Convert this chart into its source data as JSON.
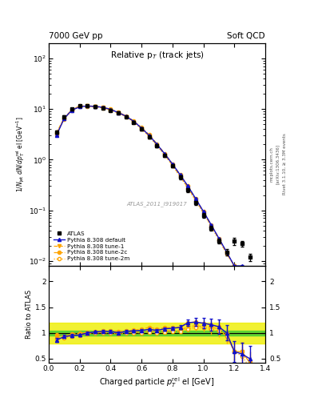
{
  "title_left": "7000 GeV pp",
  "title_right": "Soft QCD",
  "plot_title": "Relative p$_T$ (track jets)",
  "xlabel": "Charged particle $p_T^{\\rm rel}$ el [GeV]",
  "ylabel_main": "$1/N_{\\rm jet}\\;dN/dp_T^{\\rm rel}\\;{\\rm el}\\;[{\\rm GeV}^{-1}]$",
  "ylabel_ratio": "Ratio to ATLAS",
  "right_label1": "Rivet 3.1.10, ≥ 3.3M events",
  "right_label2": "[arXiv:1306.3436]",
  "right_label3": "mcplots.cern.ch",
  "watermark": "ATLAS_2011_I919017",
  "x_data": [
    0.05,
    0.1,
    0.15,
    0.2,
    0.25,
    0.3,
    0.35,
    0.4,
    0.45,
    0.5,
    0.55,
    0.6,
    0.65,
    0.7,
    0.75,
    0.8,
    0.85,
    0.9,
    0.95,
    1.0,
    1.05,
    1.1,
    1.15,
    1.2,
    1.25,
    1.3
  ],
  "atlas_y": [
    3.5,
    7.0,
    10.0,
    11.5,
    11.5,
    11.0,
    10.5,
    9.5,
    8.5,
    7.0,
    5.5,
    4.0,
    2.8,
    1.9,
    1.2,
    0.75,
    0.45,
    0.25,
    0.14,
    0.08,
    0.045,
    0.025,
    0.015,
    0.025,
    0.022,
    0.012
  ],
  "atlas_yerr": [
    0.3,
    0.4,
    0.5,
    0.5,
    0.5,
    0.5,
    0.5,
    0.4,
    0.4,
    0.35,
    0.3,
    0.25,
    0.18,
    0.12,
    0.08,
    0.05,
    0.035,
    0.02,
    0.012,
    0.008,
    0.005,
    0.003,
    0.002,
    0.004,
    0.003,
    0.002
  ],
  "pythia_default_y": [
    3.0,
    6.5,
    9.5,
    11.0,
    11.5,
    11.2,
    10.8,
    9.8,
    8.5,
    7.2,
    5.7,
    4.2,
    3.0,
    2.0,
    1.3,
    0.82,
    0.5,
    0.3,
    0.17,
    0.095,
    0.052,
    0.028,
    0.015,
    0.008,
    0.008,
    0.006
  ],
  "pythia_default_yerr": [
    0.1,
    0.15,
    0.2,
    0.2,
    0.2,
    0.2,
    0.2,
    0.18,
    0.15,
    0.13,
    0.1,
    0.08,
    0.06,
    0.04,
    0.025,
    0.016,
    0.01,
    0.006,
    0.004,
    0.002,
    0.0015,
    0.001,
    0.0006,
    0.0003,
    0.0003,
    0.0002
  ],
  "pythia_tune1_y": [
    3.2,
    6.4,
    9.6,
    11.2,
    11.4,
    11.1,
    10.6,
    9.6,
    8.4,
    7.1,
    5.6,
    4.1,
    2.9,
    1.95,
    1.25,
    0.78,
    0.47,
    0.28,
    0.16,
    0.09,
    0.05,
    0.027,
    0.014,
    0.008,
    0.007,
    0.005
  ],
  "pythia_tune2c_y": [
    3.4,
    6.6,
    9.8,
    11.4,
    11.6,
    11.3,
    10.9,
    9.9,
    8.7,
    7.3,
    5.8,
    4.3,
    3.1,
    2.05,
    1.32,
    0.83,
    0.5,
    0.3,
    0.17,
    0.095,
    0.052,
    0.028,
    0.015,
    0.008,
    0.007,
    0.005
  ],
  "pythia_tune2m_y": [
    3.1,
    6.3,
    9.4,
    11.0,
    11.3,
    11.0,
    10.5,
    9.5,
    8.3,
    7.0,
    5.5,
    4.0,
    2.85,
    1.9,
    1.22,
    0.77,
    0.46,
    0.27,
    0.155,
    0.088,
    0.048,
    0.026,
    0.014,
    0.008,
    0.006,
    0.004
  ],
  "ratio_default_y": [
    0.86,
    0.93,
    0.95,
    0.96,
    1.0,
    1.02,
    1.03,
    1.03,
    1.0,
    1.03,
    1.04,
    1.05,
    1.07,
    1.05,
    1.08,
    1.09,
    1.11,
    1.2,
    1.21,
    1.19,
    1.16,
    1.12,
    1.0,
    0.64,
    0.59,
    0.5
  ],
  "ratio_default_yerr": [
    0.04,
    0.03,
    0.025,
    0.025,
    0.025,
    0.025,
    0.025,
    0.025,
    0.025,
    0.025,
    0.025,
    0.025,
    0.025,
    0.025,
    0.03,
    0.035,
    0.04,
    0.06,
    0.08,
    0.1,
    0.12,
    0.14,
    0.15,
    0.2,
    0.22,
    0.25
  ],
  "ratio_tune1_y": [
    0.91,
    0.91,
    0.96,
    0.97,
    0.99,
    1.01,
    1.01,
    1.01,
    0.99,
    1.01,
    1.02,
    1.025,
    1.035,
    1.026,
    1.04,
    1.04,
    1.044,
    1.12,
    1.14,
    1.125,
    1.11,
    1.08,
    0.93,
    0.64,
    0.636,
    0.417
  ],
  "ratio_tune2c_y": [
    0.97,
    0.94,
    0.98,
    0.99,
    1.01,
    1.027,
    1.038,
    1.042,
    1.024,
    1.043,
    1.055,
    1.075,
    1.107,
    1.079,
    1.1,
    1.107,
    1.111,
    1.2,
    1.214,
    1.188,
    1.156,
    1.12,
    1.0,
    0.64,
    0.636,
    0.417
  ],
  "ratio_tune2m_y": [
    0.89,
    0.9,
    0.94,
    0.957,
    0.983,
    1.0,
    1.0,
    1.0,
    0.976,
    1.0,
    1.0,
    1.0,
    1.018,
    1.0,
    1.017,
    1.027,
    1.022,
    1.08,
    1.107,
    1.1,
    1.067,
    1.04,
    0.933,
    0.64,
    0.545,
    0.333
  ],
  "ratio_err": [
    0.03,
    0.025,
    0.02,
    0.02,
    0.02,
    0.02,
    0.02,
    0.02,
    0.02,
    0.02,
    0.02,
    0.02,
    0.02,
    0.02,
    0.025,
    0.03,
    0.035,
    0.05,
    0.065,
    0.08,
    0.1,
    0.12,
    0.13,
    0.17,
    0.19,
    0.22
  ],
  "color_blue": "#1111cc",
  "color_orange": "#FFA500",
  "xlim": [
    0.0,
    1.4
  ],
  "ylim_main": [
    0.008,
    200
  ],
  "ylim_ratio": [
    0.42,
    2.3
  ]
}
